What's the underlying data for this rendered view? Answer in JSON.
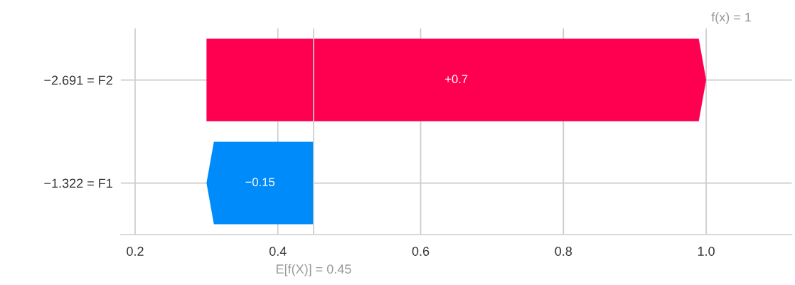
{
  "chart_data": {
    "type": "bar",
    "orientation": "horizontal",
    "categories": [
      "−2.691 = F2",
      "−1.322 = F1"
    ],
    "base": [
      0.3,
      0.45
    ],
    "values": [
      0.7,
      -0.15
    ],
    "colors": [
      "#ff0051",
      "#008bfb"
    ],
    "value_labels": [
      "+0.7",
      "−0.15"
    ],
    "xlim": [
      0.18,
      1.12
    ],
    "xticks": [
      0.2,
      0.4,
      0.6,
      0.8,
      {
        "value": 1.0,
        "label": "1.0"
      }
    ],
    "grid": true,
    "ref_lines": [
      {
        "axis": "x",
        "value": 0.45,
        "label": "E[f(X)] = 0.45",
        "color": "#cccccc"
      }
    ],
    "annotations": [
      "f(x) = 1"
    ]
  }
}
